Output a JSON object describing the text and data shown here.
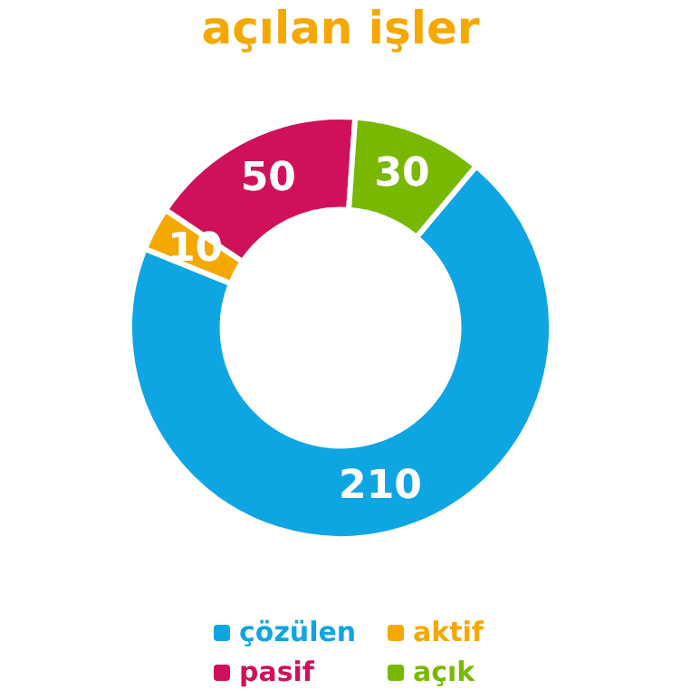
{
  "chart_data": {
    "type": "donut",
    "title": "açılan işler",
    "categories": [
      "çözülen",
      "aktif",
      "pasif",
      "açık"
    ],
    "values": [
      210,
      10,
      50,
      30
    ],
    "colors": [
      "#0ea5e3",
      "#f5a800",
      "#d0105a",
      "#79b800"
    ],
    "data_labels": true,
    "legend": "bottom"
  }
}
